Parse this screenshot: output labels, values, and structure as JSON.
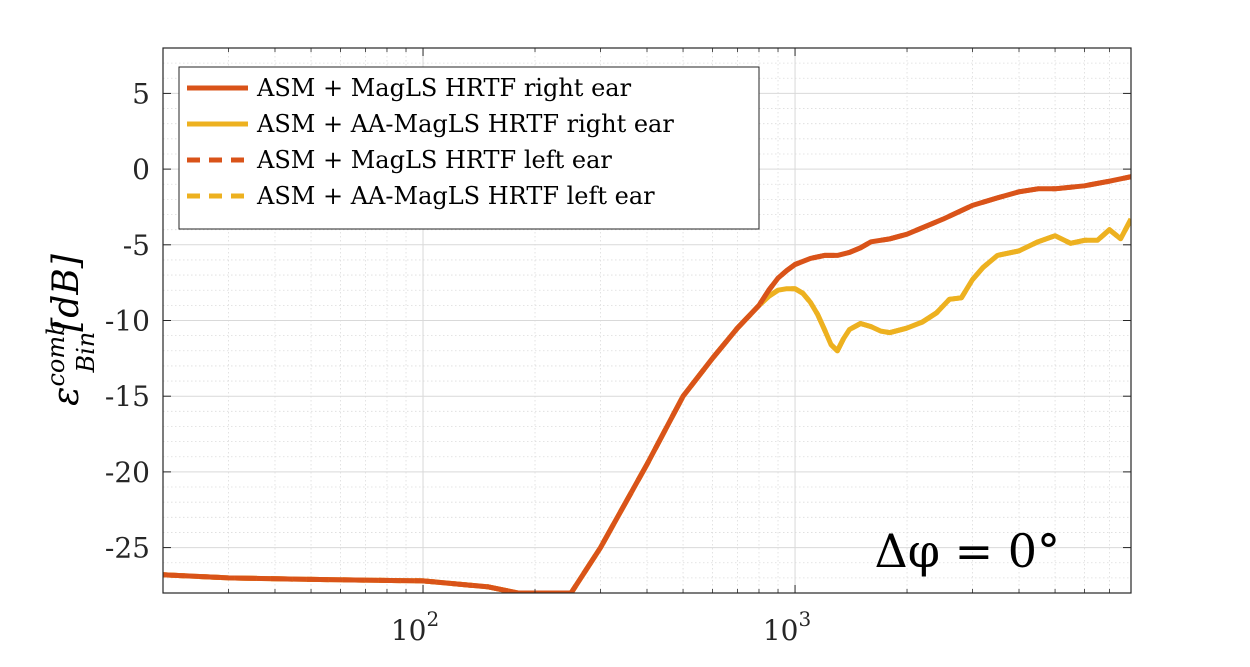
{
  "chart_data": {
    "type": "line",
    "x_scale": "log",
    "xlim": [
      20,
      8000
    ],
    "ylim": [
      -28,
      8
    ],
    "grid": true,
    "minor_grid": true,
    "legend_location": "top-left",
    "xlabel": "",
    "ylabel": {
      "base": "ε",
      "superscript": "comb",
      "subscript": "Bin",
      "unit": "[dB]"
    },
    "x_ticks": [
      {
        "value": 100,
        "label": "10",
        "exp": "2"
      },
      {
        "value": 1000,
        "label": "10",
        "exp": "3"
      }
    ],
    "y_ticks": [
      {
        "value": 5,
        "label": "5"
      },
      {
        "value": 0,
        "label": "0"
      },
      {
        "value": -5,
        "label": "-5"
      },
      {
        "value": -10,
        "label": "-10"
      },
      {
        "value": -15,
        "label": "-15"
      },
      {
        "value": -20,
        "label": "-20"
      },
      {
        "value": -25,
        "label": "-25"
      }
    ],
    "annotation": "Δφ = 0°",
    "series": [
      {
        "name": "ASM + MagLS HRTF right ear",
        "color": "#D95319",
        "dash": "solid",
        "x": [
          20,
          30,
          50,
          100,
          150,
          180,
          250,
          300,
          400,
          500,
          600,
          700,
          800,
          850,
          900,
          950,
          1000,
          1100,
          1200,
          1300,
          1400,
          1500,
          1600,
          1800,
          2000,
          2500,
          3000,
          3500,
          4000,
          4500,
          5000,
          6000,
          7000,
          8000
        ],
        "y": [
          -26.8,
          -27.0,
          -27.1,
          -27.2,
          -27.6,
          -28.0,
          -28.0,
          -25.0,
          -19.5,
          -15.0,
          -12.5,
          -10.5,
          -9.0,
          -8.0,
          -7.2,
          -6.7,
          -6.3,
          -5.9,
          -5.7,
          -5.7,
          -5.5,
          -5.2,
          -4.8,
          -4.6,
          -4.3,
          -3.3,
          -2.4,
          -1.9,
          -1.5,
          -1.3,
          -1.3,
          -1.1,
          -0.8,
          -0.5
        ]
      },
      {
        "name": "ASM + AA-MagLS HRTF right ear",
        "color": "#EDB120",
        "dash": "solid",
        "x": [
          20,
          30,
          50,
          100,
          150,
          180,
          250,
          300,
          400,
          500,
          600,
          700,
          800,
          850,
          900,
          950,
          1000,
          1050,
          1100,
          1150,
          1200,
          1250,
          1300,
          1350,
          1400,
          1500,
          1600,
          1700,
          1800,
          2000,
          2200,
          2400,
          2600,
          2800,
          3000,
          3200,
          3500,
          4000,
          4500,
          5000,
          5500,
          6000,
          6500,
          7000,
          7500,
          8000
        ],
        "y": [
          -26.8,
          -27.0,
          -27.1,
          -27.2,
          -27.6,
          -28.0,
          -28.0,
          -25.0,
          -19.5,
          -15.0,
          -12.5,
          -10.5,
          -9.0,
          -8.4,
          -8.0,
          -7.9,
          -7.9,
          -8.2,
          -8.8,
          -9.6,
          -10.6,
          -11.6,
          -12.0,
          -11.2,
          -10.6,
          -10.2,
          -10.4,
          -10.7,
          -10.8,
          -10.5,
          -10.1,
          -9.5,
          -8.6,
          -8.5,
          -7.3,
          -6.5,
          -5.7,
          -5.4,
          -4.8,
          -4.4,
          -4.9,
          -4.7,
          -4.7,
          -4.0,
          -4.6,
          -3.3
        ]
      },
      {
        "name": "ASM + MagLS HRTF left ear",
        "color": "#D95319",
        "dash": "dashed",
        "x": [
          20,
          30,
          50,
          100,
          150,
          180,
          250,
          300,
          400,
          500,
          600,
          700,
          800,
          850,
          900,
          950,
          1000,
          1100,
          1200,
          1300,
          1400,
          1500,
          1600,
          1800,
          2000,
          2500,
          3000,
          3500,
          4000,
          4500,
          5000,
          6000,
          7000,
          8000
        ],
        "y": [
          -26.8,
          -27.0,
          -27.1,
          -27.2,
          -27.6,
          -28.0,
          -28.0,
          -25.0,
          -19.5,
          -15.0,
          -12.5,
          -10.5,
          -9.0,
          -8.0,
          -7.2,
          -6.7,
          -6.3,
          -5.9,
          -5.7,
          -5.7,
          -5.5,
          -5.2,
          -4.8,
          -4.6,
          -4.3,
          -3.3,
          -2.4,
          -1.9,
          -1.5,
          -1.3,
          -1.3,
          -1.1,
          -0.8,
          -0.5
        ]
      },
      {
        "name": "ASM + AA-MagLS HRTF left ear",
        "color": "#EDB120",
        "dash": "dashed",
        "x": [
          20,
          30,
          50,
          100,
          150,
          180,
          250,
          300,
          400,
          500,
          600,
          700,
          800,
          850,
          900,
          950,
          1000,
          1050,
          1100,
          1150,
          1200,
          1250,
          1300,
          1350,
          1400,
          1500,
          1600,
          1700,
          1800,
          2000,
          2200,
          2400,
          2600,
          2800,
          3000,
          3200,
          3500,
          4000,
          4500,
          5000,
          5500,
          6000,
          6500,
          7000,
          7500,
          8000
        ],
        "y": [
          -26.8,
          -27.0,
          -27.1,
          -27.2,
          -27.6,
          -28.0,
          -28.0,
          -25.0,
          -19.5,
          -15.0,
          -12.5,
          -10.5,
          -9.0,
          -8.4,
          -8.0,
          -7.9,
          -7.9,
          -8.2,
          -8.8,
          -9.6,
          -10.6,
          -11.6,
          -12.0,
          -11.2,
          -10.6,
          -10.2,
          -10.4,
          -10.7,
          -10.8,
          -10.5,
          -10.1,
          -9.5,
          -8.6,
          -8.5,
          -7.3,
          -6.5,
          -5.7,
          -5.4,
          -4.8,
          -4.4,
          -4.9,
          -4.7,
          -4.7,
          -4.0,
          -4.6,
          -3.3
        ]
      }
    ]
  }
}
